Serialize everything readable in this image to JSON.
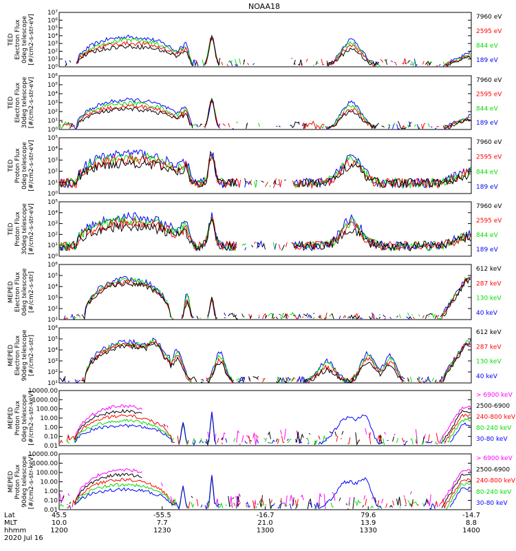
{
  "title": "NOAA18",
  "date_label": "2020 Jul 16",
  "colors": {
    "blue": "#0000ff",
    "red": "#ff0000",
    "green": "#00dd00",
    "black": "#000000",
    "magenta": "#ff00ff"
  },
  "chart_data": [
    {
      "type": "line",
      "ylabel": [
        "TED",
        "Electron Flux",
        "0deg telescope",
        "[#/cm2-s-str-eV]"
      ],
      "ylim": [
        1,
        10000000
      ],
      "y_scale": "log",
      "yticks": [
        "10⁰",
        "10¹",
        "10²",
        "10³",
        "10⁴",
        "10⁵",
        "10⁶",
        "10⁷"
      ],
      "series": [
        {
          "name": "7960 eV",
          "color": "#000000"
        },
        {
          "name": "2595 eV",
          "color": "#ff0000"
        },
        {
          "name": "844 eV",
          "color": "#00dd00"
        },
        {
          "name": "189 eV",
          "color": "#0000ff"
        }
      ]
    },
    {
      "type": "line",
      "ylabel": [
        "TED",
        "Electron Flux",
        "30deg telescope",
        "[#/cm2-s-str-eV]"
      ],
      "ylim": [
        1,
        1000000
      ],
      "y_scale": "log",
      "yticks": [
        "10⁰",
        "10¹",
        "10²",
        "10³",
        "10⁴",
        "10⁵",
        "10⁶"
      ],
      "series": [
        {
          "name": "7960 eV",
          "color": "#000000"
        },
        {
          "name": "2595 eV",
          "color": "#ff0000"
        },
        {
          "name": "844 eV",
          "color": "#00dd00"
        },
        {
          "name": "189 eV",
          "color": "#0000ff"
        }
      ]
    },
    {
      "type": "line",
      "ylabel": [
        "TED",
        "Proton Flux",
        "0deg telescope",
        "[#/cm2-s-str-eV]"
      ],
      "ylim": [
        1,
        100000
      ],
      "y_scale": "log",
      "yticks": [
        "10⁰",
        "10¹",
        "10²",
        "10³",
        "10⁴",
        "10⁵"
      ],
      "series": [
        {
          "name": "7960 eV",
          "color": "#000000"
        },
        {
          "name": "2595 eV",
          "color": "#ff0000"
        },
        {
          "name": "844 eV",
          "color": "#00dd00"
        },
        {
          "name": "189 eV",
          "color": "#0000ff"
        }
      ]
    },
    {
      "type": "line",
      "ylabel": [
        "TED",
        "Proton Flux",
        "30deg telescope",
        "[#/cm2-s-str-eV]"
      ],
      "ylim": [
        1,
        100000
      ],
      "y_scale": "log",
      "yticks": [
        "10⁰",
        "10¹",
        "10²",
        "10³",
        "10⁴",
        "10⁵"
      ],
      "series": [
        {
          "name": "7960 eV",
          "color": "#000000"
        },
        {
          "name": "2595 eV",
          "color": "#ff0000"
        },
        {
          "name": "844 eV",
          "color": "#00dd00"
        },
        {
          "name": "189 eV",
          "color": "#0000ff"
        }
      ]
    },
    {
      "type": "line",
      "ylabel": [
        "MEPED",
        "Electron Flux",
        "0deg telescope",
        "[#/cm2-s-str]"
      ],
      "ylim": [
        10,
        1000000
      ],
      "y_scale": "log",
      "yticks": [
        "10¹",
        "10²",
        "10³",
        "10⁴",
        "10⁵",
        "10⁶"
      ],
      "series": [
        {
          "name": "612 keV",
          "color": "#000000"
        },
        {
          "name": "287 keV",
          "color": "#ff0000"
        },
        {
          "name": "130 keV",
          "color": "#00dd00"
        },
        {
          "name": "40 keV",
          "color": "#0000ff"
        }
      ]
    },
    {
      "type": "line",
      "ylabel": [
        "MEPED",
        "Electron Flux",
        "90deg telescope",
        "[#/cm2-s-str]"
      ],
      "ylim": [
        10,
        1000000
      ],
      "y_scale": "log",
      "yticks": [
        "10¹",
        "10²",
        "10³",
        "10⁴",
        "10⁵",
        "10⁶"
      ],
      "series": [
        {
          "name": "612 keV",
          "color": "#000000"
        },
        {
          "name": "287 keV",
          "color": "#ff0000"
        },
        {
          "name": "130 keV",
          "color": "#00dd00"
        },
        {
          "name": "40 keV",
          "color": "#0000ff"
        }
      ]
    },
    {
      "type": "line",
      "ylabel": [
        "MEPED",
        "Proton Flux",
        "0deg telescope",
        "[#/cm2-s-str-keV]"
      ],
      "ylim": [
        0.01,
        10000
      ],
      "y_scale": "log",
      "yticks": [
        "0.01",
        "0.10",
        "1.00",
        "10.00",
        "100.00",
        "1000.00",
        "10000.00"
      ],
      "series": [
        {
          "name": "> 6900 keV",
          "color": "#ff00ff"
        },
        {
          "name": "2500-6900",
          "color": "#000000"
        },
        {
          "name": "240-800 keV",
          "color": "#ff0000"
        },
        {
          "name": "80-240 keV",
          "color": "#00dd00"
        },
        {
          "name": "30-80 keV",
          "color": "#0000ff"
        }
      ]
    },
    {
      "type": "line",
      "ylabel": [
        "MEPED",
        "Proton Flux",
        "90deg telescope",
        "[#/cm2-s-str-keV]"
      ],
      "ylim": [
        0.01,
        10000
      ],
      "y_scale": "log",
      "yticks": [
        "0.01",
        "0.10",
        "1.00",
        "10.00",
        "100.00",
        "1000.00",
        "10000.00"
      ],
      "series": [
        {
          "name": "> 6900 keV",
          "color": "#ff00ff"
        },
        {
          "name": "2500-6900",
          "color": "#000000"
        },
        {
          "name": "240-800 keV",
          "color": "#ff0000"
        },
        {
          "name": "80-240 keV",
          "color": "#00dd00"
        },
        {
          "name": "30-80 keV",
          "color": "#0000ff"
        }
      ]
    }
  ],
  "x_axis": {
    "row_labels": [
      "Lat",
      "MLT",
      "hhmm"
    ],
    "ticks": [
      {
        "lat": "45.5",
        "mlt": "10.0",
        "hhmm": "1200"
      },
      {
        "lat": "-55.5",
        "mlt": "7.7",
        "hhmm": "1230"
      },
      {
        "lat": "-16.7",
        "mlt": "21.0",
        "hhmm": "1300"
      },
      {
        "lat": "79.6",
        "mlt": "13.9",
        "hhmm": "1330"
      },
      {
        "lat": "-14.7",
        "mlt": "8.8",
        "hhmm": "1400"
      }
    ]
  }
}
